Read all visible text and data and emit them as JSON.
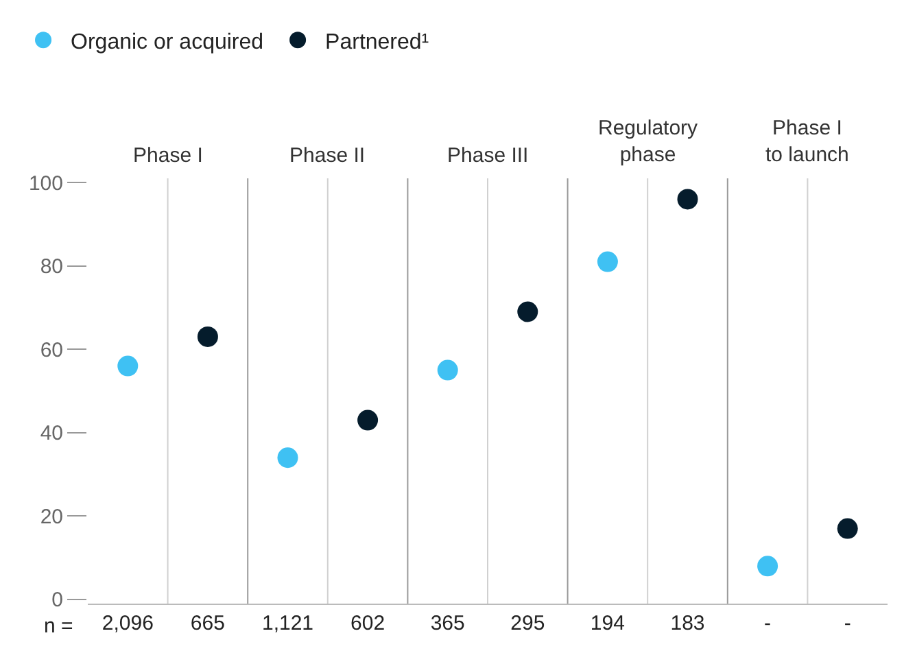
{
  "chart_data": {
    "type": "scatter",
    "categories": [
      "2,096",
      "665",
      "1,121",
      "602",
      "365",
      "295",
      "194",
      "183",
      "-",
      "-"
    ],
    "series": [
      {
        "name": "Organic or acquired",
        "color": "#3fc1f3",
        "values": [
          56,
          null,
          34,
          null,
          55,
          null,
          81,
          null,
          8,
          null
        ]
      },
      {
        "name": "Partnered¹",
        "color": "#051c2c",
        "values": [
          null,
          63,
          null,
          43,
          null,
          69,
          null,
          96,
          null,
          17
        ]
      }
    ],
    "ylim": [
      -1,
      101
    ],
    "yticks": [
      0,
      20,
      40,
      60,
      80,
      100
    ],
    "grid": "x",
    "legend": "top left",
    "marker": "circle",
    "annotations": [
      "Phase I",
      "Phase II",
      "Phase III",
      "Regulatory\nphase",
      "Phase I\nto launch",
      "n ="
    ]
  }
}
